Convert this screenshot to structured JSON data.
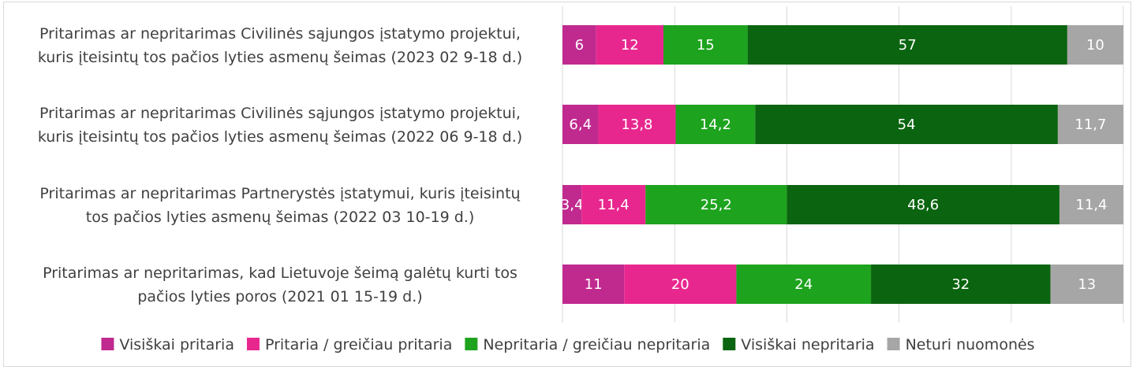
{
  "chart_data": {
    "type": "bar",
    "orientation": "horizontal",
    "stacked": "percent",
    "title": "",
    "xlabel": "",
    "ylabel": "",
    "xlim": [
      0,
      100
    ],
    "grid": true,
    "legend_position": "bottom",
    "categories": [
      [
        "Pritarimas ar nepritarimas  Civilinės sąjungos įstatymo projektui,",
        "kuris įteisintų tos pačios lyties asmenų šeimas (2023 02 9-18 d.)"
      ],
      [
        "Pritarimas ar nepritarimas  Civilinės sąjungos įstatymo projektui,",
        "kuris įteisintų tos pačios lyties asmenų šeimas (2022 06 9-18 d.)"
      ],
      [
        "Pritarimas ar nepritarimas  Partnerystės įstatymui, kuris įteisintų",
        "tos pačios lyties asmenų šeimas (2022 03 10-19 d.)"
      ],
      [
        "Pritarimas ar nepritarimas, kad Lietuvoje šeimą galėtų kurti tos",
        "pačios lyties poros (2021 01 15-19 d.)"
      ]
    ],
    "series": [
      {
        "name": "Visiškai pritaria",
        "color": "#c02a8f",
        "values": [
          6,
          6.4,
          3.4,
          11
        ],
        "labels": [
          "6",
          "6,4",
          "3,4",
          "11"
        ]
      },
      {
        "name": "Pritaria / greičiau pritaria",
        "color": "#e8278e",
        "values": [
          12,
          13.8,
          11.4,
          20
        ],
        "labels": [
          "12",
          "13,8",
          "11,4",
          "20"
        ]
      },
      {
        "name": "Nepritaria / greičiau nepritaria",
        "color": "#1ea31e",
        "values": [
          15,
          14.2,
          25.2,
          24
        ],
        "labels": [
          "15",
          "14,2",
          "25,2",
          "24"
        ]
      },
      {
        "name": "Visiškai nepritaria",
        "color": "#0b6410",
        "values": [
          57,
          54,
          48.6,
          32
        ],
        "labels": [
          "57",
          "54",
          "48,6",
          "32"
        ]
      },
      {
        "name": "Neturi nuomonės",
        "color": "#a6a6a6",
        "values": [
          10,
          11.7,
          11.4,
          13
        ],
        "labels": [
          "10",
          "11,7",
          "11,4",
          "13"
        ]
      }
    ]
  }
}
